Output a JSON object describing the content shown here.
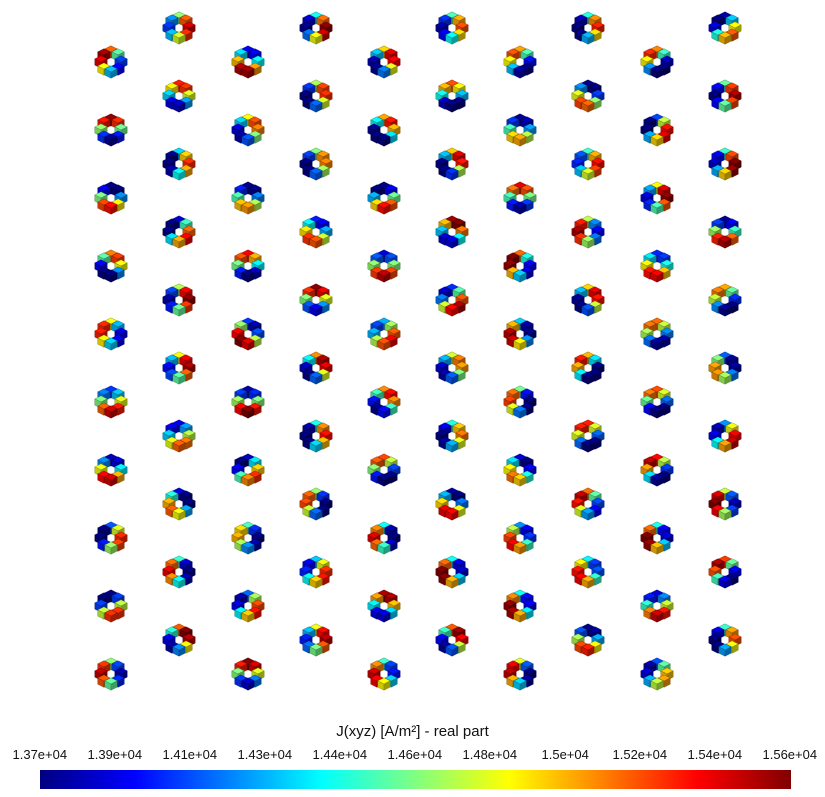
{
  "plot": {
    "colorbar": {
      "title": "J(xyz) [A/m²]  - real part",
      "colormap": "jet",
      "ticks": [
        "1.37e+04",
        "1.39e+04",
        "1.41e+04",
        "1.43e+04",
        "1.44e+04",
        "1.46e+04",
        "1.48e+04",
        "1.5e+04",
        "1.52e+04",
        "1.54e+04",
        "1.56e+04"
      ],
      "range": [
        13700,
        15600
      ],
      "stops": [
        "#000080",
        "#0000ff",
        "#0080ff",
        "#00ffff",
        "#80ff80",
        "#ffff00",
        "#ff8000",
        "#ff0000",
        "#800000"
      ]
    },
    "lattice": {
      "columns": 10,
      "rows_per_column": 10,
      "ring_segments": 8
    }
  }
}
